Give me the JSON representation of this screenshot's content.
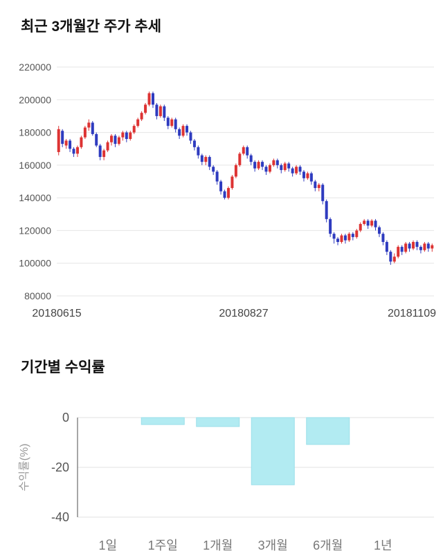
{
  "page": {
    "background": "#ffffff"
  },
  "chart_data": [
    {
      "type": "candlestick",
      "title": "최근 3개월간 주가 추세",
      "ylim": [
        80000,
        220000
      ],
      "yticks": [
        220000,
        200000,
        180000,
        160000,
        140000,
        120000,
        100000,
        80000
      ],
      "xtick_labels": [
        "20180615",
        "20180827",
        "20181109"
      ],
      "up_color": "#dd3333",
      "down_color": "#2e3bbf",
      "grid": true,
      "grid_color": "#e5e5e5",
      "ytick_color": "#555555",
      "xtick_color": "#444444",
      "candles": [
        [
          168000,
          184000,
          166000,
          182000
        ],
        [
          181000,
          182000,
          171000,
          173000
        ],
        [
          172000,
          176000,
          170000,
          175000
        ],
        [
          175000,
          176000,
          168000,
          170000
        ],
        [
          170000,
          171000,
          165000,
          167000
        ],
        [
          167000,
          172000,
          165000,
          171000
        ],
        [
          171000,
          178000,
          170000,
          177000
        ],
        [
          177000,
          184000,
          176000,
          183000
        ],
        [
          183000,
          188000,
          181000,
          186000
        ],
        [
          186000,
          187000,
          178000,
          179000
        ],
        [
          179000,
          180000,
          171000,
          172000
        ],
        [
          172000,
          173000,
          163000,
          165000
        ],
        [
          165000,
          170000,
          163000,
          169000
        ],
        [
          169000,
          175000,
          168000,
          174000
        ],
        [
          174000,
          179000,
          172000,
          178000
        ],
        [
          178000,
          179000,
          171000,
          173000
        ],
        [
          173000,
          178000,
          172000,
          177000
        ],
        [
          177000,
          181000,
          175000,
          180000
        ],
        [
          180000,
          181000,
          174000,
          176000
        ],
        [
          176000,
          181000,
          175000,
          180000
        ],
        [
          180000,
          185000,
          179000,
          184000
        ],
        [
          184000,
          189000,
          183000,
          188000
        ],
        [
          188000,
          193000,
          187000,
          192000
        ],
        [
          192000,
          198000,
          191000,
          197000
        ],
        [
          197000,
          205000,
          196000,
          204000
        ],
        [
          204000,
          205000,
          195000,
          197000
        ],
        [
          197000,
          198000,
          188000,
          190000
        ],
        [
          190000,
          197000,
          189000,
          196000
        ],
        [
          196000,
          197000,
          187000,
          189000
        ],
        [
          189000,
          190000,
          182000,
          184000
        ],
        [
          184000,
          189000,
          183000,
          188000
        ],
        [
          188000,
          189000,
          180000,
          182000
        ],
        [
          182000,
          183000,
          176000,
          178000
        ],
        [
          178000,
          185000,
          177000,
          184000
        ],
        [
          184000,
          185000,
          178000,
          180000
        ],
        [
          180000,
          181000,
          173000,
          175000
        ],
        [
          175000,
          176000,
          169000,
          171000
        ],
        [
          171000,
          172000,
          164000,
          166000
        ],
        [
          166000,
          167000,
          160000,
          162000
        ],
        [
          162000,
          166000,
          160000,
          165000
        ],
        [
          165000,
          166000,
          157000,
          159000
        ],
        [
          159000,
          160000,
          154000,
          156000
        ],
        [
          156000,
          157000,
          148000,
          150000
        ],
        [
          150000,
          151000,
          142000,
          144000
        ],
        [
          144000,
          145000,
          139000,
          140000
        ],
        [
          140000,
          147000,
          139000,
          146000
        ],
        [
          146000,
          154000,
          145000,
          153000
        ],
        [
          153000,
          161000,
          152000,
          160000
        ],
        [
          160000,
          168000,
          159000,
          167000
        ],
        [
          167000,
          172000,
          166000,
          171000
        ],
        [
          171000,
          172000,
          164000,
          166000
        ],
        [
          166000,
          167000,
          160000,
          162000
        ],
        [
          162000,
          163000,
          156000,
          158000
        ],
        [
          158000,
          163000,
          157000,
          162000
        ],
        [
          162000,
          163000,
          157000,
          159000
        ],
        [
          159000,
          160000,
          154000,
          156000
        ],
        [
          156000,
          161000,
          155000,
          160000
        ],
        [
          160000,
          164000,
          159000,
          163000
        ],
        [
          163000,
          164000,
          158000,
          160000
        ],
        [
          160000,
          161000,
          155000,
          157000
        ],
        [
          157000,
          162000,
          156000,
          161000
        ],
        [
          161000,
          162000,
          156000,
          158000
        ],
        [
          158000,
          159000,
          153000,
          155000
        ],
        [
          155000,
          160000,
          154000,
          159000
        ],
        [
          159000,
          160000,
          154000,
          156000
        ],
        [
          156000,
          157000,
          150000,
          152000
        ],
        [
          152000,
          156000,
          151000,
          155000
        ],
        [
          155000,
          156000,
          148000,
          150000
        ],
        [
          150000,
          151000,
          144000,
          146000
        ],
        [
          146000,
          149000,
          144000,
          148000
        ],
        [
          148000,
          149000,
          136000,
          138000
        ],
        [
          138000,
          139000,
          125000,
          127000
        ],
        [
          127000,
          128000,
          116000,
          118000
        ],
        [
          118000,
          119000,
          112000,
          115000
        ],
        [
          115000,
          116000,
          111000,
          113000
        ],
        [
          113000,
          118000,
          112000,
          117000
        ],
        [
          117000,
          118000,
          112000,
          114000
        ],
        [
          114000,
          119000,
          113000,
          118000
        ],
        [
          118000,
          119000,
          114000,
          116000
        ],
        [
          116000,
          121000,
          115000,
          120000
        ],
        [
          120000,
          125000,
          119000,
          124000
        ],
        [
          124000,
          127000,
          123000,
          126000
        ],
        [
          126000,
          127000,
          121000,
          123000
        ],
        [
          123000,
          127000,
          122000,
          126000
        ],
        [
          126000,
          127000,
          120000,
          122000
        ],
        [
          122000,
          123000,
          116000,
          118000
        ],
        [
          118000,
          119000,
          111000,
          113000
        ],
        [
          113000,
          114000,
          105000,
          107000
        ],
        [
          107000,
          108000,
          99000,
          101000
        ],
        [
          101000,
          106000,
          100000,
          104000
        ],
        [
          104000,
          111000,
          103000,
          110000
        ],
        [
          110000,
          111000,
          105000,
          107000
        ],
        [
          107000,
          113000,
          106000,
          112000
        ],
        [
          112000,
          113000,
          107000,
          109000
        ],
        [
          109000,
          114000,
          108000,
          113000
        ],
        [
          113000,
          114000,
          108000,
          110000
        ],
        [
          110000,
          111000,
          106000,
          108000
        ],
        [
          108000,
          113000,
          107000,
          112000
        ],
        [
          112000,
          113000,
          107000,
          109000
        ],
        [
          109000,
          112000,
          107000,
          111000
        ]
      ]
    },
    {
      "type": "bar",
      "title": "기간별 수익률",
      "ylabel": "수익률(%)",
      "categories": [
        "1일",
        "1주일",
        "1개월",
        "3개월",
        "6개월",
        "1년"
      ],
      "values": [
        0,
        -2.8,
        -3.6,
        -27,
        -10.8,
        0
      ],
      "yticks": [
        0,
        -20,
        -40
      ],
      "ylim": [
        -45,
        0
      ],
      "grid": true,
      "bar_color": "#b2ebf2",
      "bar_border_color": "#9bdfe9",
      "grid_color": "#e0e0e0",
      "axis_color": "#888888",
      "ytick_color": "#555555",
      "category_color": "#777777",
      "ylabel_color": "#999999"
    }
  ]
}
